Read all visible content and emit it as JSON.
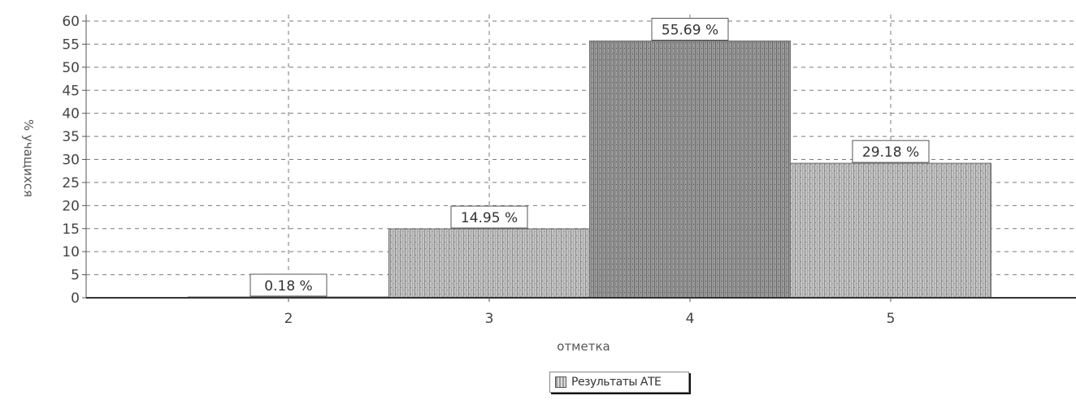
{
  "chart_data": {
    "type": "bar",
    "categories": [
      "2",
      "3",
      "4",
      "5"
    ],
    "values": [
      0.18,
      14.95,
      55.69,
      29.18
    ],
    "data_labels": [
      "0.18 %",
      "14.95 %",
      "55.69 %",
      "29.18 %"
    ],
    "xlabel": "отметка",
    "ylabel": "% учащихся",
    "ylim": [
      0,
      60
    ],
    "yticks": [
      0,
      5,
      10,
      15,
      20,
      25,
      30,
      35,
      40,
      45,
      50,
      55,
      60
    ],
    "grid": true,
    "legend_position": "bottom",
    "series": [
      {
        "name": "Результаты АТЕ",
        "values": [
          0.18,
          14.95,
          55.69,
          29.18
        ]
      }
    ],
    "colors": {
      "bar_fill": "#b0b0b0",
      "bar_shade": "#8a8a8a",
      "grid": "#7a7a7a",
      "axis": "#555555"
    }
  }
}
